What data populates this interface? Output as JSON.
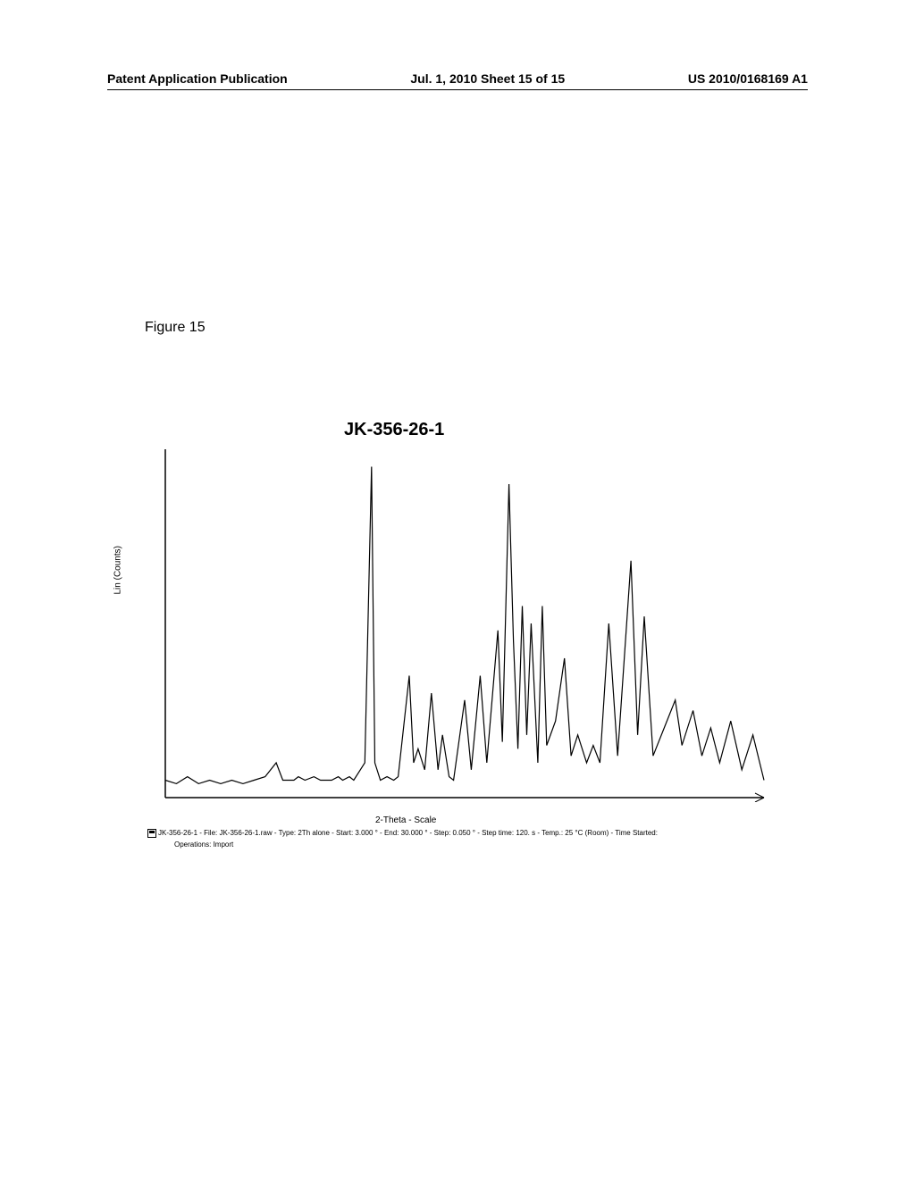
{
  "header": {
    "left": "Patent Application Publication",
    "center": "Jul. 1, 2010  Sheet 15 of 15",
    "right": "US 2010/0168169 A1"
  },
  "figure_label": "Figure 15",
  "chart": {
    "type": "line",
    "title": "JK-356-26-1",
    "y_axis_label": "Lin (Counts)",
    "x_axis_label": "2-Theta - Scale",
    "stroke_color": "#000000",
    "stroke_width": 1.2,
    "background_color": "#ffffff",
    "axis_color": "#000000",
    "xlim": [
      3,
      30
    ],
    "ylim": [
      0,
      100
    ],
    "data_points": [
      [
        3.0,
        5
      ],
      [
        3.5,
        4
      ],
      [
        4.0,
        6
      ],
      [
        4.5,
        4
      ],
      [
        5.0,
        5
      ],
      [
        5.5,
        4
      ],
      [
        6.0,
        5
      ],
      [
        6.5,
        4
      ],
      [
        7.0,
        5
      ],
      [
        7.5,
        6
      ],
      [
        8.0,
        10
      ],
      [
        8.3,
        5
      ],
      [
        8.8,
        5
      ],
      [
        9.0,
        6
      ],
      [
        9.3,
        5
      ],
      [
        9.7,
        6
      ],
      [
        10.0,
        5
      ],
      [
        10.5,
        5
      ],
      [
        10.8,
        6
      ],
      [
        11.0,
        5
      ],
      [
        11.3,
        6
      ],
      [
        11.5,
        5
      ],
      [
        12.0,
        10
      ],
      [
        12.3,
        95
      ],
      [
        12.45,
        10
      ],
      [
        12.7,
        5
      ],
      [
        13.0,
        6
      ],
      [
        13.3,
        5
      ],
      [
        13.5,
        6
      ],
      [
        14.0,
        35
      ],
      [
        14.2,
        10
      ],
      [
        14.4,
        14
      ],
      [
        14.7,
        8
      ],
      [
        15.0,
        30
      ],
      [
        15.3,
        8
      ],
      [
        15.5,
        18
      ],
      [
        15.8,
        6
      ],
      [
        16.0,
        5
      ],
      [
        16.5,
        28
      ],
      [
        16.8,
        8
      ],
      [
        17.2,
        35
      ],
      [
        17.5,
        10
      ],
      [
        18.0,
        48
      ],
      [
        18.2,
        16
      ],
      [
        18.5,
        90
      ],
      [
        18.7,
        45
      ],
      [
        18.9,
        14
      ],
      [
        19.1,
        55
      ],
      [
        19.3,
        18
      ],
      [
        19.5,
        50
      ],
      [
        19.8,
        10
      ],
      [
        20.0,
        55
      ],
      [
        20.2,
        15
      ],
      [
        20.6,
        22
      ],
      [
        21.0,
        40
      ],
      [
        21.3,
        12
      ],
      [
        21.6,
        18
      ],
      [
        22.0,
        10
      ],
      [
        22.3,
        15
      ],
      [
        22.6,
        10
      ],
      [
        23.0,
        50
      ],
      [
        23.4,
        12
      ],
      [
        24.0,
        68
      ],
      [
        24.3,
        18
      ],
      [
        24.6,
        52
      ],
      [
        25.0,
        12
      ],
      [
        25.5,
        20
      ],
      [
        26.0,
        28
      ],
      [
        26.3,
        15
      ],
      [
        26.8,
        25
      ],
      [
        27.2,
        12
      ],
      [
        27.6,
        20
      ],
      [
        28.0,
        10
      ],
      [
        28.5,
        22
      ],
      [
        29.0,
        8
      ],
      [
        29.5,
        18
      ],
      [
        30.0,
        5
      ]
    ]
  },
  "metadata": {
    "line1": "JK-356-26-1 - File: JK-356-26-1.raw - Type: 2Th alone - Start: 3.000 ° - End: 30.000 ° - Step: 0.050 ° - Step time: 120. s - Temp.: 25 °C (Room) - Time Started:",
    "operations": "Operations: Import"
  }
}
